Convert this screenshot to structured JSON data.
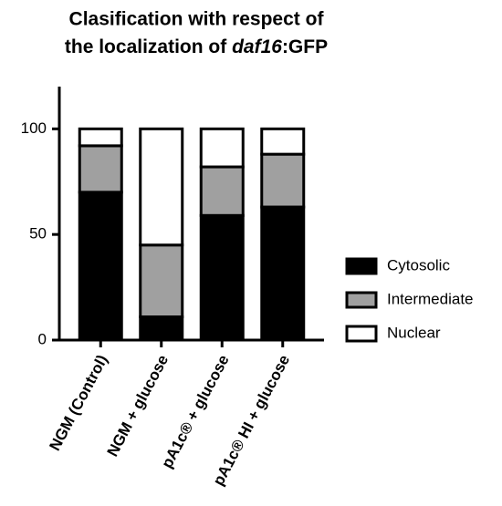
{
  "chart_data": {
    "type": "stacked_bar",
    "title": [
      "Clasification with respect of",
      "the localization of ",
      "daf16",
      ":GFP"
    ],
    "categories": [
      "NGM (Control)",
      "NGM + glucose",
      "pA1c® + glucose",
      "pA1c® HI + glucose"
    ],
    "series": [
      {
        "name": "Cytosolic",
        "color": "#000000",
        "values": [
          70,
          11,
          59,
          63
        ]
      },
      {
        "name": "Intermediate",
        "color": "#a0a0a0",
        "values": [
          22,
          34,
          23,
          25
        ]
      },
      {
        "name": "Nuclear",
        "color": "#ffffff",
        "values": [
          8,
          55,
          18,
          12
        ]
      }
    ],
    "ylim": [
      0,
      120
    ],
    "yticks": [
      0,
      50,
      100
    ],
    "legend": "right"
  }
}
